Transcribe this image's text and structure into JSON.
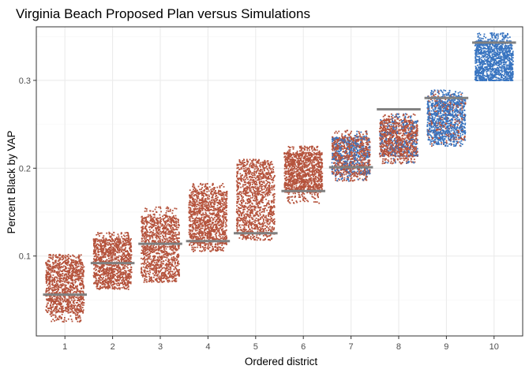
{
  "chart_data": {
    "type": "scatter",
    "title": "Virginia Beach Proposed Plan versus Simulations",
    "xlabel": "Ordered district",
    "ylabel": "Percent Black by VAP",
    "categories": [
      "1",
      "2",
      "3",
      "4",
      "5",
      "6",
      "7",
      "8",
      "9",
      "10"
    ],
    "xlim": [
      0.4,
      10.6
    ],
    "ylim": [
      0.009,
      0.361
    ],
    "yticks": [
      0.1,
      0.2,
      0.3
    ],
    "ytick_labels": [
      "0.1",
      "0.2",
      "0.3"
    ],
    "grid": true,
    "legend": "none",
    "colors": {
      "red": "#b5533c",
      "blue": "#3874c0",
      "proposed": "#808080",
      "grid_major": "#ebebeb",
      "grid_minor": "#f5f5f5",
      "border": "#333333"
    },
    "simulations": [
      {
        "district": "1",
        "min": 0.025,
        "core_min": 0.035,
        "core_max": 0.095,
        "max": 0.102,
        "blue_share": 0.0
      },
      {
        "district": "2",
        "min": 0.062,
        "core_min": 0.068,
        "core_max": 0.12,
        "max": 0.127,
        "blue_share": 0.0
      },
      {
        "district": "3",
        "min": 0.07,
        "core_min": 0.076,
        "core_max": 0.145,
        "max": 0.156,
        "blue_share": 0.0
      },
      {
        "district": "4",
        "min": 0.105,
        "core_min": 0.112,
        "core_max": 0.175,
        "max": 0.183,
        "blue_share": 0.0
      },
      {
        "district": "5",
        "min": 0.118,
        "core_min": 0.125,
        "core_max": 0.205,
        "max": 0.21,
        "blue_share": 0.0
      },
      {
        "district": "6",
        "min": 0.16,
        "core_min": 0.172,
        "core_max": 0.218,
        "max": 0.225,
        "blue_share": 0.0
      },
      {
        "district": "7",
        "min": 0.185,
        "core_min": 0.193,
        "core_max": 0.236,
        "max": 0.243,
        "blue_share": 0.35
      },
      {
        "district": "8",
        "min": 0.205,
        "core_min": 0.213,
        "core_max": 0.255,
        "max": 0.262,
        "blue_share": 0.25
      },
      {
        "district": "9",
        "min": 0.225,
        "core_min": 0.232,
        "core_max": 0.282,
        "max": 0.289,
        "blue_share": 0.8
      },
      {
        "district": "10",
        "min": 0.3,
        "core_min": 0.3,
        "core_max": 0.345,
        "max": 0.354,
        "blue_share": 1.0
      }
    ],
    "proposed_plan": [
      {
        "district": "1",
        "value": 0.056
      },
      {
        "district": "2",
        "value": 0.092
      },
      {
        "district": "3",
        "value": 0.114
      },
      {
        "district": "4",
        "value": 0.117
      },
      {
        "district": "5",
        "value": 0.126
      },
      {
        "district": "6",
        "value": 0.174
      },
      {
        "district": "7",
        "value": 0.201
      },
      {
        "district": "8",
        "value": 0.267
      },
      {
        "district": "9",
        "value": 0.28
      },
      {
        "district": "10",
        "value": 0.343
      }
    ]
  }
}
